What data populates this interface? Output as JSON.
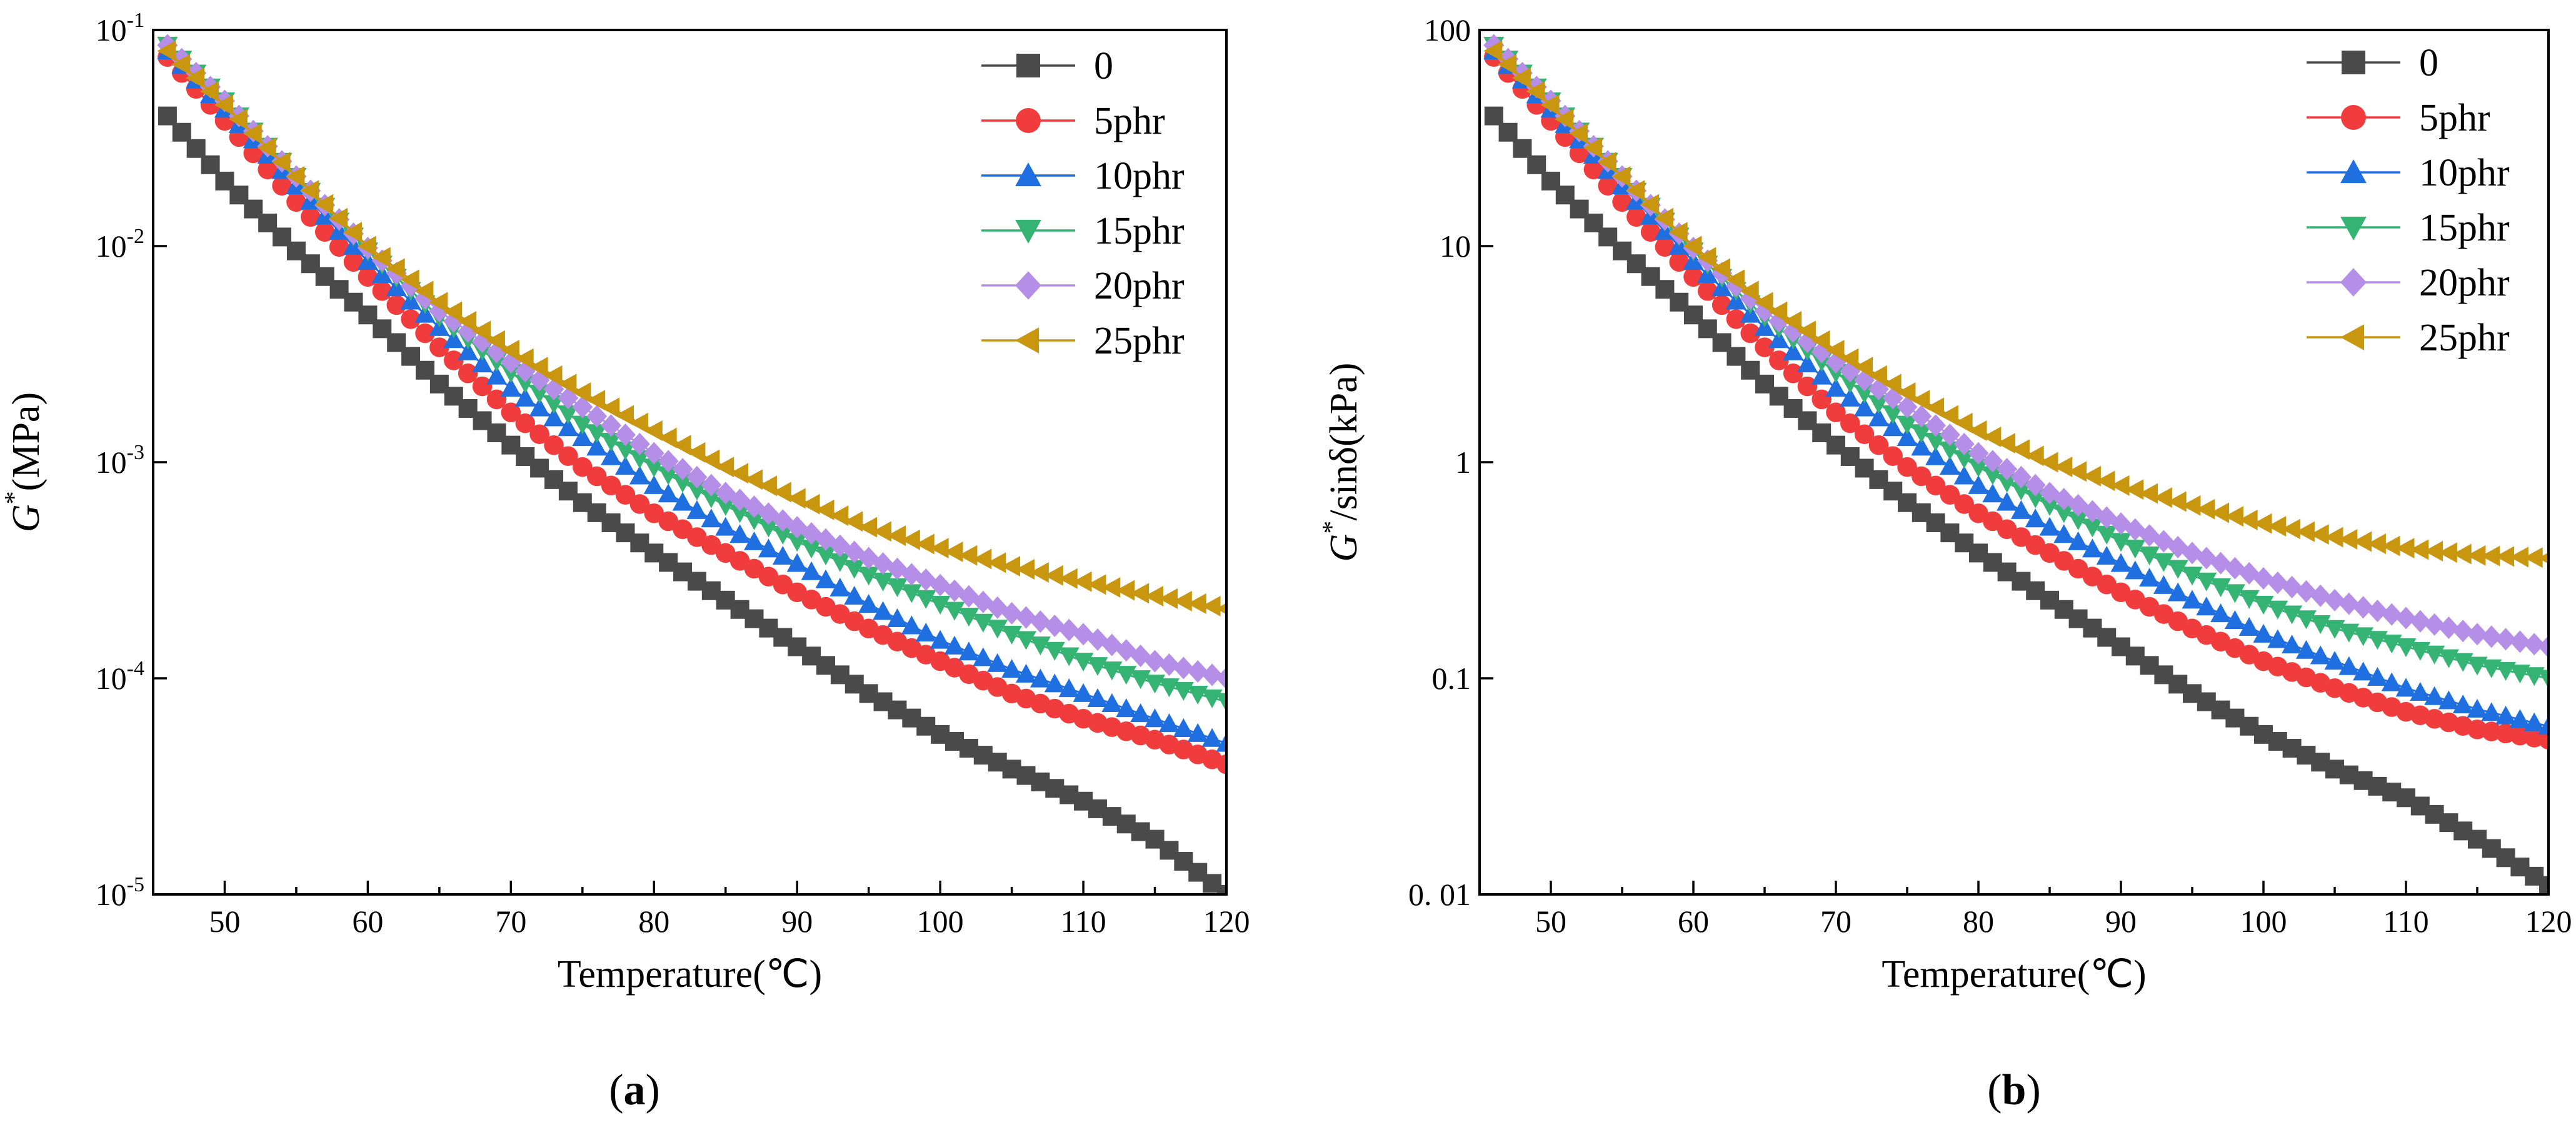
{
  "colors": {
    "0": "#4a4a4a",
    "5phr": "#f03c3c",
    "10phr": "#1f6fe0",
    "15phr": "#34b372",
    "20phr": "#b58ee8",
    "25phr": "#c8960f"
  },
  "chart_data": [
    {
      "type": "scatter",
      "panel_label": "a",
      "title": "",
      "xlabel": "Temperature(℃)",
      "ylabel_symbol": "G",
      "ylabel_sup": "*",
      "ylabel_rest": "(MPa)",
      "yscale": "log",
      "xlim": [
        45,
        120
      ],
      "ylim": [
        1e-05,
        0.1
      ],
      "xticks": [
        50,
        60,
        70,
        80,
        90,
        100,
        110,
        120
      ],
      "xtick_labels": [
        "50",
        "60",
        "70",
        "80",
        "90",
        "100",
        "110",
        "120"
      ],
      "yticks": [
        1e-05,
        0.0001,
        0.001,
        0.01,
        0.1
      ],
      "ytick_base": [
        "10",
        "10",
        "10",
        "10",
        "10"
      ],
      "ytick_exp": [
        "-5",
        "-4",
        "-3",
        "-2",
        "-1"
      ],
      "legend_position": "top-right",
      "x": [
        46,
        50,
        55,
        60,
        65,
        70,
        75,
        80,
        85,
        90,
        95,
        100,
        105,
        110,
        115,
        120
      ],
      "series": [
        {
          "name": "0",
          "marker": "square",
          "values": [
            0.04,
            0.02,
            0.0095,
            0.0048,
            0.0023,
            0.0012,
            0.00065,
            0.00038,
            0.00023,
            0.00014,
            8.5e-05,
            5.5e-05,
            3.8e-05,
            2.7e-05,
            1.8e-05,
            1e-05
          ]
        },
        {
          "name": "5phr",
          "marker": "circle",
          "values": [
            0.075,
            0.038,
            0.016,
            0.0072,
            0.0034,
            0.0017,
            0.00095,
            0.00058,
            0.00038,
            0.00025,
            0.00017,
            0.00012,
            8.5e-05,
            6.5e-05,
            5.2e-05,
            4e-05
          ]
        },
        {
          "name": "10phr",
          "marker": "triangle-up",
          "values": [
            0.08,
            0.043,
            0.019,
            0.0085,
            0.0042,
            0.0022,
            0.0013,
            0.00078,
            0.0005,
            0.00034,
            0.00022,
            0.00015,
            0.00011,
            8.5e-05,
            6.5e-05,
            5e-05
          ]
        },
        {
          "name": "15phr",
          "marker": "triangle-down",
          "values": [
            0.085,
            0.047,
            0.021,
            0.0095,
            0.0047,
            0.0026,
            0.0015,
            0.00095,
            0.00063,
            0.00043,
            0.0003,
            0.00022,
            0.00016,
            0.00012,
            9.5e-05,
            7.8e-05
          ]
        },
        {
          "name": "20phr",
          "marker": "diamond",
          "values": [
            0.085,
            0.047,
            0.021,
            0.0098,
            0.005,
            0.0029,
            0.0018,
            0.0011,
            0.00072,
            0.0005,
            0.00036,
            0.00027,
            0.0002,
            0.00016,
            0.00012,
            0.0001
          ]
        },
        {
          "name": "25phr",
          "marker": "triangle-left",
          "values": [
            0.08,
            0.045,
            0.021,
            0.01,
            0.0055,
            0.0033,
            0.0021,
            0.0014,
            0.00095,
            0.00068,
            0.0005,
            0.0004,
            0.00033,
            0.00028,
            0.00024,
            0.00021
          ]
        }
      ]
    },
    {
      "type": "scatter",
      "panel_label": "b",
      "title": "",
      "xlabel": "Temperature(℃)",
      "ylabel_symbol": "G",
      "ylabel_sup": "*",
      "ylabel_rest": "/sinδ(kPa)",
      "yscale": "log",
      "xlim": [
        45,
        120
      ],
      "ylim": [
        0.01,
        100
      ],
      "xticks": [
        50,
        60,
        70,
        80,
        90,
        100,
        110,
        120
      ],
      "xtick_labels": [
        "50",
        "60",
        "70",
        "80",
        "90",
        "100",
        "110",
        "120"
      ],
      "yticks": [
        0.01,
        0.1,
        1,
        10,
        100
      ],
      "ytick_labels": [
        "0. 01",
        "0.1",
        "1",
        "10",
        "100"
      ],
      "legend_position": "top-right",
      "x": [
        46,
        50,
        55,
        60,
        65,
        70,
        75,
        80,
        85,
        90,
        95,
        100,
        105,
        110,
        115,
        120
      ],
      "series": [
        {
          "name": "0",
          "marker": "square",
          "values": [
            40,
            20,
            9.5,
            4.8,
            2.3,
            1.2,
            0.65,
            0.38,
            0.23,
            0.14,
            0.085,
            0.055,
            0.038,
            0.028,
            0.018,
            0.011
          ]
        },
        {
          "name": "5phr",
          "marker": "circle",
          "values": [
            75,
            38,
            16,
            7.2,
            3.4,
            1.7,
            0.95,
            0.58,
            0.38,
            0.25,
            0.17,
            0.12,
            0.09,
            0.07,
            0.058,
            0.052
          ]
        },
        {
          "name": "10phr",
          "marker": "triangle-up",
          "values": [
            80,
            43,
            19,
            8.5,
            4.2,
            2.2,
            1.3,
            0.78,
            0.5,
            0.34,
            0.23,
            0.16,
            0.12,
            0.09,
            0.072,
            0.06
          ]
        },
        {
          "name": "15phr",
          "marker": "triangle-down",
          "values": [
            85,
            47,
            21,
            9.5,
            4.7,
            2.6,
            1.5,
            0.95,
            0.63,
            0.43,
            0.3,
            0.22,
            0.17,
            0.14,
            0.115,
            0.1
          ]
        },
        {
          "name": "20phr",
          "marker": "diamond",
          "values": [
            85,
            47,
            21,
            9.8,
            5,
            2.9,
            1.8,
            1.1,
            0.72,
            0.52,
            0.38,
            0.29,
            0.23,
            0.19,
            0.16,
            0.14
          ]
        },
        {
          "name": "25phr",
          "marker": "triangle-left",
          "values": [
            80,
            45,
            21,
            10,
            5.5,
            3.3,
            2.1,
            1.4,
            1.0,
            0.78,
            0.63,
            0.52,
            0.45,
            0.4,
            0.37,
            0.36
          ]
        }
      ]
    }
  ]
}
